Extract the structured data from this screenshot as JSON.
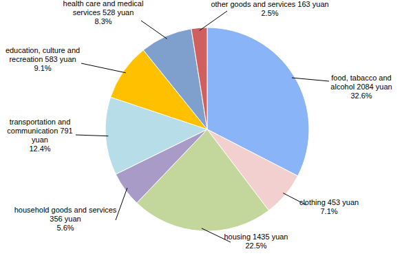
{
  "chart_data": {
    "type": "pie",
    "categories": [
      "food, tabacco and alcohol",
      "clothing",
      "housing",
      "household goods and services",
      "transportation and communication",
      "education, culture and recreation",
      "health care and medical services",
      "other goods and services"
    ],
    "values": [
      32.6,
      7.1,
      22.5,
      5.6,
      12.4,
      9.1,
      8.3,
      2.5
    ],
    "value_labels": [
      "32.6%",
      "7.1%",
      "22.5%",
      "5.6%",
      "12.4%",
      "9.1%",
      "8.3%",
      "2.5%"
    ],
    "amounts": [
      2084,
      453,
      1435,
      356,
      791,
      583,
      528,
      163
    ],
    "amount_labels": [
      "2084 yuan",
      "453 yuan",
      "1435 yuan",
      "356 yuan",
      "791 yuan",
      "583 yuan",
      "528 yuan",
      "163 yuan"
    ],
    "colors": [
      "#8ab4f8",
      "#f2d0d0",
      "#c3d69b",
      "#a99bc7",
      "#b7dee8",
      "#ffc000",
      "#7f9fcc",
      "#d06060"
    ],
    "data_labels": true
  }
}
